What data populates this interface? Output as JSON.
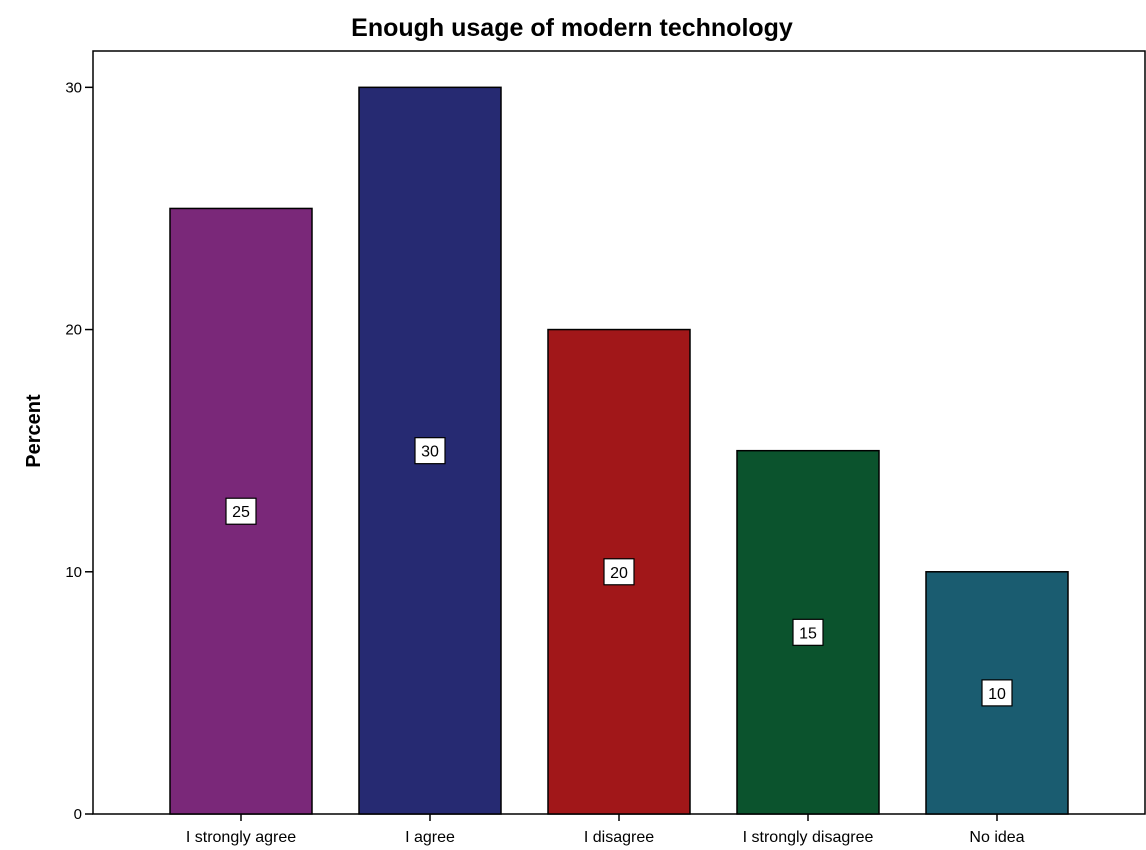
{
  "chart_data": {
    "type": "bar",
    "title": "Enough usage of modern technology",
    "xlabel": "",
    "ylabel": "Percent",
    "categories": [
      "I strongly agree",
      "I agree",
      "I disagree",
      "I strongly disagree",
      "No idea"
    ],
    "values": [
      25,
      30,
      20,
      15,
      10
    ],
    "data_labels": [
      "25",
      "30",
      "20",
      "15",
      "10"
    ],
    "colors": [
      "#7a2879",
      "#262a72",
      "#a11719",
      "#0b532d",
      "#1a5c70"
    ],
    "ylim": [
      0,
      31.5
    ],
    "yticks": [
      0,
      10,
      20,
      30
    ],
    "grid": false,
    "legend": "none"
  }
}
